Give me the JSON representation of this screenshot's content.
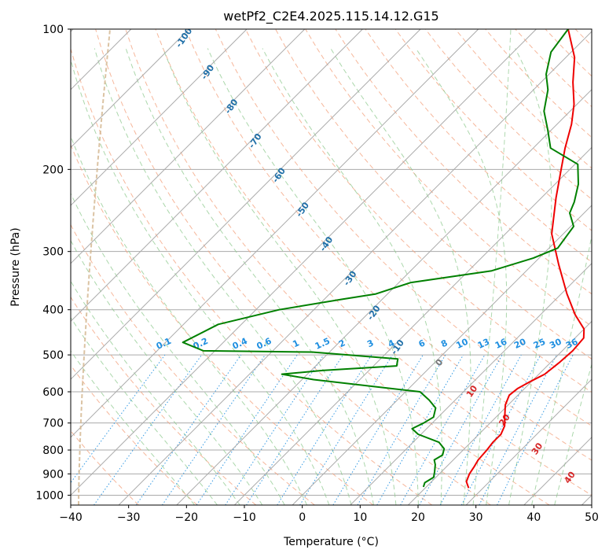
{
  "colors": {
    "temperature": "#ee0000",
    "dewpoint": "#008000",
    "grid": "#aaaaaa",
    "dry_adiabat": "#f4a582",
    "moist_adiabat": "#8fc98f",
    "mixing_ratio": "#1f8fe0",
    "dry_adiabat_label": "#1f6fa8",
    "isotherm_label": "#d62728",
    "lcl_curve": "#d2b48c"
  },
  "chart_data": {
    "type": "skewt",
    "title": "wetPf2_C2E4.2025.115.14.12.G15",
    "xlabel": "Temperature (°C)",
    "ylabel": "Pressure (hPa)",
    "xlim": [
      -40,
      50
    ],
    "ylim": [
      1050,
      100
    ],
    "x_ticks": [
      "−40",
      "−30",
      "−20",
      "−10",
      "0",
      "10",
      "20",
      "30",
      "40",
      "50"
    ],
    "y_ticks": [
      "100",
      "200",
      "300",
      "400",
      "500",
      "600",
      "700",
      "800",
      "900",
      "1000"
    ],
    "grid": true,
    "series": [
      {
        "role": "temperature",
        "points": [
          [
            27.5,
            965
          ],
          [
            26,
            935
          ],
          [
            25.2,
            900
          ],
          [
            24.8,
            870
          ],
          [
            24.3,
            840
          ],
          [
            24.1,
            800
          ],
          [
            23.8,
            770
          ],
          [
            23.8,
            740
          ],
          [
            23,
            710
          ],
          [
            21.5,
            680
          ],
          [
            19.5,
            640
          ],
          [
            18.5,
            610
          ],
          [
            18.8,
            590
          ],
          [
            19.8,
            570
          ],
          [
            21,
            550
          ],
          [
            21.5,
            520
          ],
          [
            21.8,
            490
          ],
          [
            21.5,
            460
          ],
          [
            20,
            440
          ],
          [
            16,
            410
          ],
          [
            11,
            370
          ],
          [
            4.5,
            320
          ],
          [
            -2,
            275
          ],
          [
            -7.5,
            230
          ],
          [
            -11.5,
            200
          ],
          [
            -14.5,
            180
          ],
          [
            -17.5,
            160
          ],
          [
            -20.5,
            145
          ],
          [
            -24.5,
            130
          ],
          [
            -28.5,
            115
          ],
          [
            -32,
            106
          ],
          [
            -34.5,
            100
          ]
        ]
      },
      {
        "role": "dewpoint",
        "points": [
          [
            19.5,
            960
          ],
          [
            19,
            940
          ],
          [
            19.6,
            915
          ],
          [
            18.8,
            890
          ],
          [
            17.7,
            860
          ],
          [
            16.7,
            840
          ],
          [
            17.3,
            820
          ],
          [
            16.5,
            795
          ],
          [
            14.5,
            770
          ],
          [
            9.5,
            740
          ],
          [
            7.5,
            720
          ],
          [
            8.5,
            700
          ],
          [
            9.2,
            680
          ],
          [
            8,
            650
          ],
          [
            5.5,
            625
          ],
          [
            2.5,
            600
          ],
          [
            -18,
            565
          ],
          [
            -24.4,
            550
          ],
          [
            -18,
            540
          ],
          [
            -6,
            528
          ],
          [
            -7,
            510
          ],
          [
            -23,
            493
          ],
          [
            -42,
            490
          ],
          [
            -47,
            470
          ],
          [
            -44,
            430
          ],
          [
            -36,
            400
          ],
          [
            -27,
            380
          ],
          [
            -22,
            370
          ],
          [
            -18,
            350
          ],
          [
            -6,
            330
          ],
          [
            -1,
            310
          ],
          [
            1.5,
            295
          ],
          [
            0.5,
            265
          ],
          [
            -2.5,
            248
          ],
          [
            -3.6,
            235
          ],
          [
            -6,
            215
          ],
          [
            -9.5,
            195
          ],
          [
            -17,
            180
          ],
          [
            -20.5,
            165
          ],
          [
            -24.5,
            150
          ],
          [
            -27.5,
            135
          ],
          [
            -30.5,
            125
          ],
          [
            -33.5,
            112
          ],
          [
            -34.5,
            100
          ]
        ]
      }
    ],
    "dry_adiabat_labels": [
      "-100",
      "-90",
      "-80",
      "-70",
      "-60",
      "-50",
      "-40",
      "-30",
      "-20",
      "-10",
      "0",
      "10",
      "20",
      "30",
      "40"
    ],
    "mixing_ratio_labels": [
      "0.1",
      "0.2",
      "0.4",
      "0.6",
      "1",
      "1.5",
      "2",
      "3",
      "4",
      "6",
      "8",
      "10",
      "13",
      "16",
      "20",
      "25",
      "30",
      "36"
    ]
  }
}
